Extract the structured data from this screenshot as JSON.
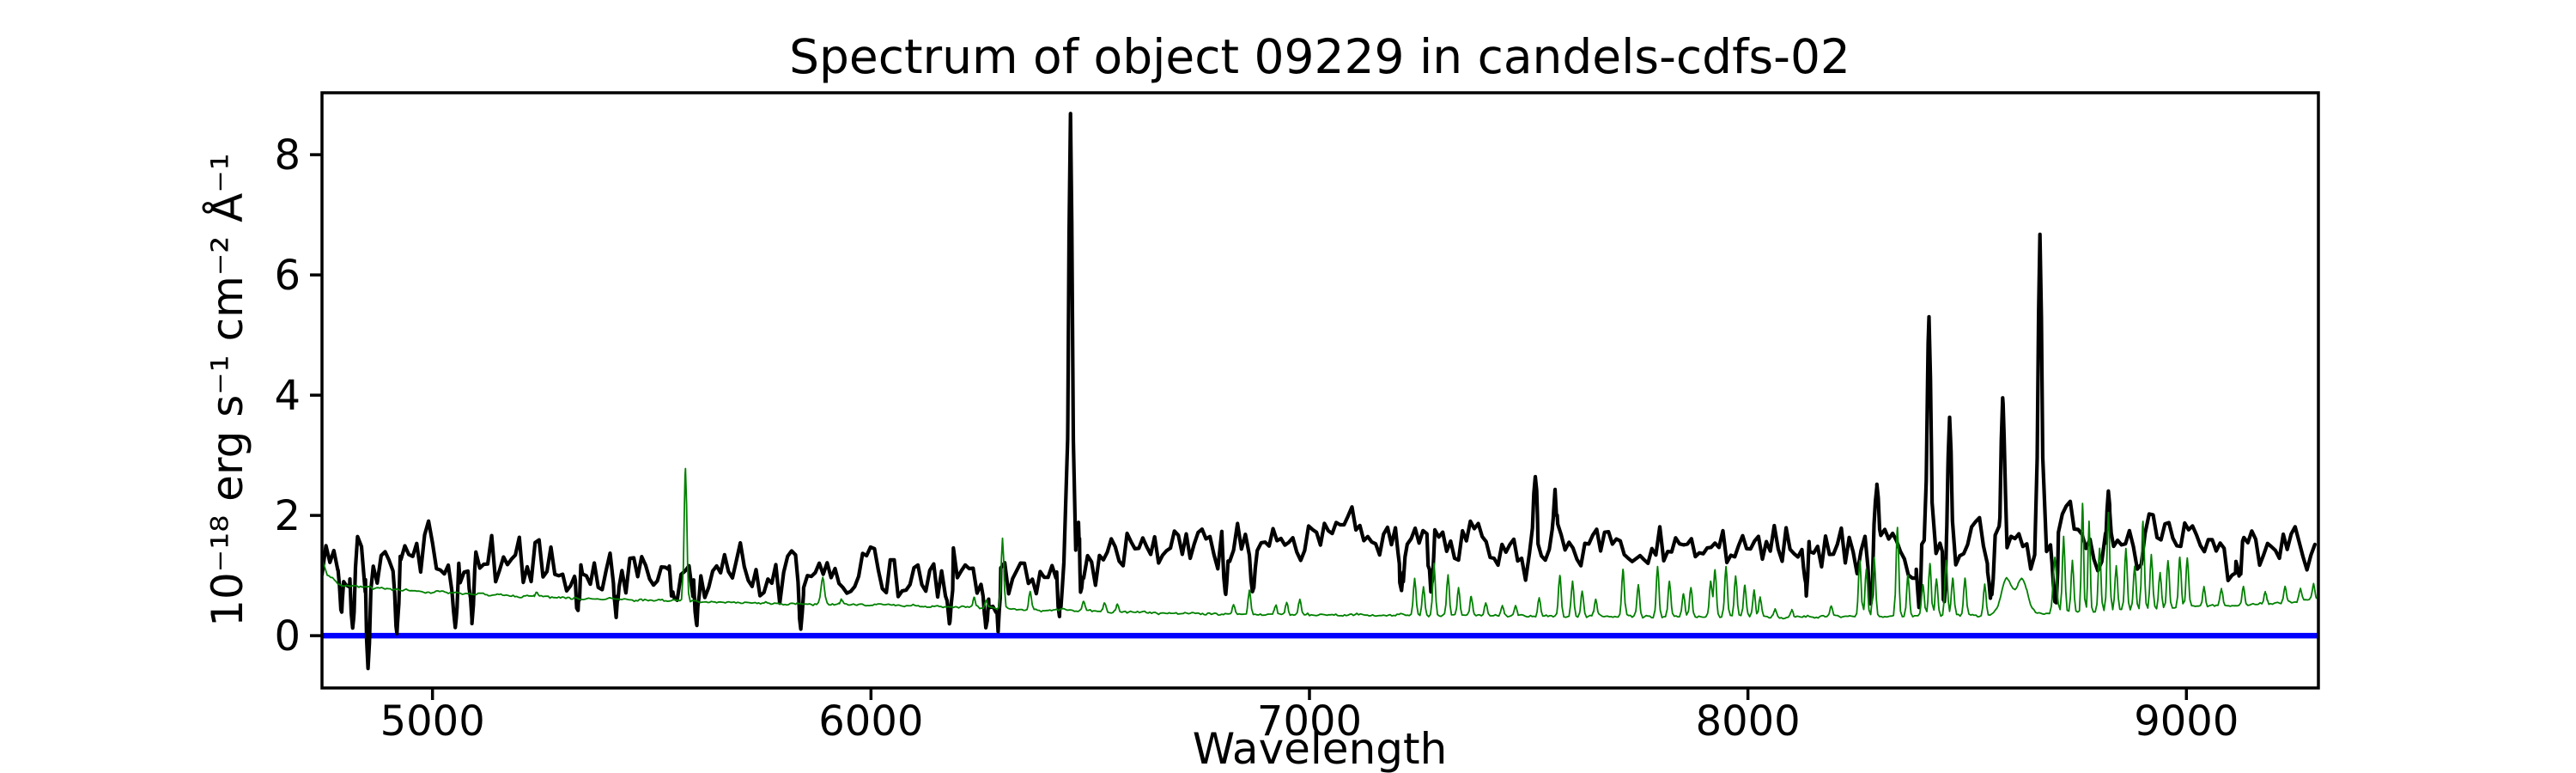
{
  "figure": {
    "title": "Spectrum of object 09229 in candels-cdfs-02",
    "background": "#ffffff"
  },
  "axes": {
    "xlabel": "Wavelength",
    "ylabel": "10⁻¹⁸ erg s⁻¹ cm⁻² Å⁻¹",
    "xlim": [
      4748,
      9301
    ],
    "ylim": [
      -0.87,
      9.03
    ],
    "x_ticks": [
      5000,
      6000,
      7000,
      8000,
      9000
    ],
    "y_ticks": [
      0,
      2,
      4,
      6,
      8
    ],
    "grid": false,
    "legend": null,
    "spine_color": "#000000"
  },
  "chart_data": {
    "type": "line",
    "title": "Spectrum of object 09229 in candels-cdfs-02",
    "xlabel": "Wavelength",
    "ylabel": "10⁻¹⁸ erg s⁻¹ cm⁻² Å⁻¹",
    "x_units": "Angstrom",
    "xlim": [
      4748,
      9301
    ],
    "ylim": [
      -0.87,
      9.03
    ],
    "series": [
      {
        "name": "zero-flux-reference",
        "kind": "hline",
        "y": 0,
        "color": "#0000ff",
        "linewidth": 6.5
      },
      {
        "name": "object-spectrum",
        "kind": "noisy-line",
        "color": "#000000",
        "linewidth": 4.2,
        "seed": 9,
        "sample_step": 9,
        "baseline": [
          [
            4748,
            1.18
          ],
          [
            5000,
            1.12
          ],
          [
            5300,
            1.1
          ],
          [
            5600,
            1.0
          ],
          [
            5900,
            0.98
          ],
          [
            6100,
            1.0
          ],
          [
            6300,
            1.02
          ],
          [
            6455,
            1.15
          ],
          [
            6600,
            1.35
          ],
          [
            6800,
            1.55
          ],
          [
            7000,
            1.68
          ],
          [
            7150,
            1.7
          ],
          [
            7350,
            1.52
          ],
          [
            7600,
            1.45
          ],
          [
            7800,
            1.5
          ],
          [
            8000,
            1.58
          ],
          [
            8200,
            1.55
          ],
          [
            8400,
            1.48
          ],
          [
            8600,
            1.52
          ],
          [
            8800,
            1.58
          ],
          [
            9000,
            1.45
          ],
          [
            9150,
            1.4
          ],
          [
            9300,
            1.38
          ]
        ],
        "noise_sigma": [
          [
            4748,
            0.3
          ],
          [
            5500,
            0.27
          ],
          [
            6200,
            0.25
          ],
          [
            6600,
            0.23
          ],
          [
            7200,
            0.22
          ],
          [
            7800,
            0.23
          ],
          [
            8200,
            0.26
          ],
          [
            8700,
            0.25
          ],
          [
            9301,
            0.23
          ]
        ],
        "peaks": [
          [
            6455,
            8.68,
            4
          ],
          [
            6472,
            1.95,
            3
          ],
          [
            7515,
            2.62,
            4
          ],
          [
            7560,
            2.38,
            4
          ],
          [
            8294,
            2.5,
            4
          ],
          [
            8413,
            5.35,
            4
          ],
          [
            8460,
            3.6,
            4
          ],
          [
            8581,
            3.95,
            4
          ],
          [
            8666,
            6.72,
            4
          ],
          [
            8822,
            2.25,
            4
          ]
        ],
        "dips": [
          [
            4791,
            0.35,
            4
          ],
          [
            4818,
            0.12,
            4
          ],
          [
            4853,
            -0.6,
            4
          ],
          [
            4920,
            0.22,
            4
          ],
          [
            5052,
            0.28,
            5
          ],
          [
            5090,
            0.25,
            4
          ],
          [
            5332,
            0.35,
            4
          ],
          [
            5419,
            0.35,
            4
          ],
          [
            5545,
            0.35,
            4
          ],
          [
            5602,
            0.3,
            4
          ],
          [
            5840,
            0.33,
            4
          ],
          [
            6180,
            0.3,
            4
          ],
          [
            6262,
            0.22,
            4
          ],
          [
            6290,
            0.18,
            3
          ],
          [
            6430,
            0.55,
            4
          ],
          [
            6478,
            0.9,
            3
          ],
          [
            6808,
            0.7,
            4
          ],
          [
            6870,
            0.72,
            4
          ],
          [
            7210,
            0.85,
            5
          ],
          [
            7277,
            0.7,
            4
          ],
          [
            8133,
            0.75,
            4
          ],
          [
            8280,
            0.55,
            4
          ],
          [
            8390,
            0.45,
            4
          ],
          [
            8448,
            0.6,
            3
          ],
          [
            8553,
            0.65,
            4
          ],
          [
            8700,
            0.7,
            4
          ],
          [
            9120,
            0.8,
            5
          ]
        ]
      },
      {
        "name": "error-sky-spectrum",
        "kind": "noisy-line",
        "color": "#008000",
        "linewidth": 1.8,
        "seed": 4,
        "sample_step": 4,
        "baseline": [
          [
            4748,
            1.3
          ],
          [
            4760,
            1.0
          ],
          [
            4790,
            0.84
          ],
          [
            4900,
            0.77
          ],
          [
            5000,
            0.72
          ],
          [
            5150,
            0.67
          ],
          [
            5300,
            0.63
          ],
          [
            5450,
            0.6
          ],
          [
            5600,
            0.57
          ],
          [
            5750,
            0.54
          ],
          [
            5900,
            0.52
          ],
          [
            6050,
            0.5
          ],
          [
            6200,
            0.47
          ],
          [
            6350,
            0.44
          ],
          [
            6500,
            0.41
          ],
          [
            6650,
            0.38
          ],
          [
            6800,
            0.36
          ],
          [
            7000,
            0.345
          ],
          [
            7200,
            0.335
          ],
          [
            7500,
            0.325
          ],
          [
            7800,
            0.315
          ],
          [
            8100,
            0.315
          ],
          [
            8400,
            0.33
          ],
          [
            8600,
            0.35
          ],
          [
            8800,
            0.4
          ],
          [
            9000,
            0.47
          ],
          [
            9150,
            0.52
          ],
          [
            9300,
            0.6
          ]
        ],
        "noise_sigma": [
          [
            4748,
            0.012
          ],
          [
            9301,
            0.012
          ]
        ],
        "peaks": [
          [
            5237,
            0.72,
            3
          ],
          [
            5577,
            2.78,
            3
          ],
          [
            5890,
            0.95,
            4
          ],
          [
            5933,
            0.62,
            3
          ],
          [
            6235,
            0.62,
            3
          ],
          [
            6263,
            0.58,
            3
          ],
          [
            6300,
            1.62,
            3
          ],
          [
            6363,
            0.75,
            3
          ],
          [
            6485,
            0.58,
            3
          ],
          [
            6533,
            0.55,
            3
          ],
          [
            6562,
            0.52,
            3
          ],
          [
            6827,
            0.52,
            3
          ],
          [
            6863,
            0.75,
            3
          ],
          [
            6923,
            0.5,
            3
          ],
          [
            6948,
            0.55,
            3
          ],
          [
            6978,
            0.6,
            3
          ],
          [
            7240,
            0.95,
            3
          ],
          [
            7260,
            0.8,
            3
          ],
          [
            7284,
            1.2,
            3
          ],
          [
            7316,
            1.0,
            3
          ],
          [
            7340,
            0.8,
            3
          ],
          [
            7369,
            0.65,
            3
          ],
          [
            7402,
            0.55,
            3
          ],
          [
            7440,
            0.5,
            3
          ],
          [
            7470,
            0.5,
            3
          ],
          [
            7524,
            0.62,
            3
          ],
          [
            7571,
            1.0,
            3
          ],
          [
            7600,
            0.9,
            3
          ],
          [
            7622,
            0.75,
            3
          ],
          [
            7653,
            0.6,
            3
          ],
          [
            7715,
            1.1,
            3
          ],
          [
            7750,
            0.85,
            3
          ],
          [
            7794,
            1.15,
            3
          ],
          [
            7821,
            0.9,
            3
          ],
          [
            7853,
            0.7,
            3
          ],
          [
            7870,
            0.8,
            3
          ],
          [
            7915,
            0.9,
            3
          ],
          [
            7925,
            1.1,
            3
          ],
          [
            7950,
            1.15,
            3
          ],
          [
            7972,
            1.0,
            3
          ],
          [
            7993,
            0.85,
            3
          ],
          [
            8014,
            0.75,
            3
          ],
          [
            8028,
            0.65,
            3
          ],
          [
            8062,
            0.45,
            3
          ],
          [
            8100,
            0.42,
            3
          ],
          [
            8190,
            0.5,
            3
          ],
          [
            8255,
            1.25,
            3
          ],
          [
            8270,
            1.1,
            3
          ],
          [
            8288,
            1.3,
            3
          ],
          [
            8341,
            1.8,
            3
          ],
          [
            8365,
            1.0,
            3
          ],
          [
            8399,
            0.85,
            3
          ],
          [
            8415,
            1.2,
            3
          ],
          [
            8430,
            0.95,
            3
          ],
          [
            8452,
            1.25,
            3
          ],
          [
            8467,
            0.95,
            3
          ],
          [
            8495,
            0.95,
            3
          ],
          [
            8540,
            0.85,
            3
          ],
          [
            8590,
            0.95,
            12
          ],
          [
            8625,
            0.95,
            12
          ],
          [
            8700,
            1.3,
            4
          ],
          [
            8720,
            1.65,
            3
          ],
          [
            8740,
            1.25,
            3
          ],
          [
            8763,
            2.2,
            2.5
          ],
          [
            8778,
            1.9,
            2.5
          ],
          [
            8802,
            1.45,
            3
          ],
          [
            8822,
            2.05,
            3
          ],
          [
            8840,
            1.15,
            3
          ],
          [
            8862,
            1.45,
            3
          ],
          [
            8882,
            1.15,
            3
          ],
          [
            8901,
            1.9,
            3
          ],
          [
            8920,
            1.35,
            3
          ],
          [
            8940,
            1.05,
            3
          ],
          [
            8958,
            1.25,
            3
          ],
          [
            8985,
            1.3,
            3
          ],
          [
            9002,
            1.3,
            3
          ],
          [
            9040,
            0.8,
            3
          ],
          [
            9080,
            0.78,
            3
          ],
          [
            9130,
            0.82,
            3
          ],
          [
            9180,
            0.72,
            3
          ],
          [
            9225,
            0.82,
            3
          ],
          [
            9260,
            0.78,
            3
          ],
          [
            9290,
            0.85,
            3
          ]
        ],
        "dips": []
      }
    ]
  }
}
